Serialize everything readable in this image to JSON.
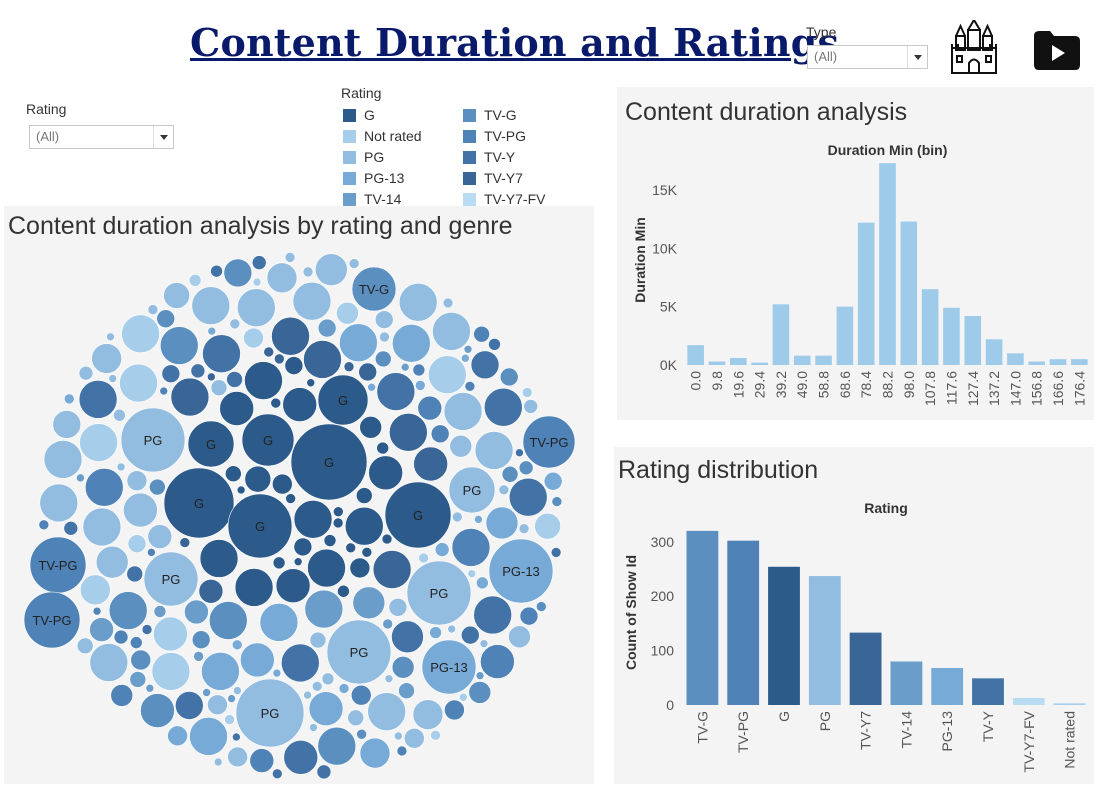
{
  "header": {
    "title": "Content Duration and Ratings",
    "type_filter": {
      "label": "Type",
      "value": "(All)"
    }
  },
  "icons": {
    "castle": "castle-icon",
    "play": "play-icon"
  },
  "rating_filter": {
    "label": "Rating",
    "value": "(All)"
  },
  "legend": {
    "title": "Rating",
    "items": [
      {
        "label": "G",
        "color": "#2c5a8a"
      },
      {
        "label": "Not rated",
        "color": "#a6cde9"
      },
      {
        "label": "PG",
        "color": "#92bde0"
      },
      {
        "label": "PG-13",
        "color": "#77aad6"
      },
      {
        "label": "TV-14",
        "color": "#6a9dca"
      },
      {
        "label": "TV-G",
        "color": "#5a8fbf"
      },
      {
        "label": "TV-PG",
        "color": "#4f82b6"
      },
      {
        "label": "TV-Y",
        "color": "#4373a6"
      },
      {
        "label": "TV-Y7",
        "color": "#3a6597"
      },
      {
        "label": "TV-Y7-FV",
        "color": "#b8ddf2"
      }
    ]
  },
  "colors": {
    "G": "#2c5a8a",
    "Not rated": "#a6cde9",
    "PG": "#92bde0",
    "PG-13": "#77aad6",
    "TV-14": "#6a9dca",
    "TV-G": "#5a8fbf",
    "TV-PG": "#4f82b6",
    "TV-Y": "#4373a6",
    "TV-Y7": "#3a6597",
    "TV-Y7-FV": "#b8ddf2",
    "bar_blue": "#9fcbea"
  },
  "bubble_panel": {
    "title": "Content duration analysis by rating and genre"
  },
  "chart_data": [
    {
      "type": "bubble",
      "title": "Content duration analysis by rating and genre",
      "labeled_bubbles": [
        {
          "rating": "G",
          "label": "G"
        },
        {
          "rating": "G",
          "label": "G"
        },
        {
          "rating": "G",
          "label": "G"
        },
        {
          "rating": "G",
          "label": "G"
        },
        {
          "rating": "G",
          "label": "G"
        },
        {
          "rating": "G",
          "label": "G"
        },
        {
          "rating": "G",
          "label": "G"
        },
        {
          "rating": "PG",
          "label": "PG"
        },
        {
          "rating": "PG",
          "label": "PG"
        },
        {
          "rating": "PG",
          "label": "PG"
        },
        {
          "rating": "PG",
          "label": "PG"
        },
        {
          "rating": "PG",
          "label": "PG"
        },
        {
          "rating": "PG",
          "label": "PG"
        },
        {
          "rating": "PG-13",
          "label": "PG-13"
        },
        {
          "rating": "PG-13",
          "label": "PG-13"
        },
        {
          "rating": "TV-G",
          "label": "TV-G"
        },
        {
          "rating": "TV-PG",
          "label": "TV-PG"
        },
        {
          "rating": "TV-PG",
          "label": "TV-PG"
        },
        {
          "rating": "TV-PG",
          "label": "TV-PG"
        }
      ]
    },
    {
      "type": "bar",
      "title": "Content duration analysis",
      "xlabel": "Duration Min (bin)",
      "ylabel": "Duration Min",
      "categories": [
        "0.0",
        "9.8",
        "19.6",
        "29.4",
        "39.2",
        "49.0",
        "58.8",
        "68.6",
        "78.4",
        "88.2",
        "98.0",
        "107.8",
        "117.6",
        "127.4",
        "137.2",
        "147.0",
        "156.8",
        "166.6",
        "176.4"
      ],
      "values": [
        1700,
        300,
        600,
        200,
        5200,
        800,
        800,
        5000,
        12200,
        17300,
        12300,
        6500,
        4900,
        4200,
        2200,
        1000,
        300,
        500,
        500
      ],
      "yticks": [
        0,
        5000,
        10000,
        15000
      ],
      "ytick_labels": [
        "0K",
        "5K",
        "10K",
        "15K"
      ],
      "ylim": [
        0,
        18000
      ]
    },
    {
      "type": "bar",
      "title": "Rating distribution",
      "xlabel": "Rating",
      "ylabel": "Count of Show Id",
      "categories": [
        "TV-G",
        "TV-PG",
        "G",
        "PG",
        "TV-Y7",
        "TV-14",
        "PG-13",
        "TV-Y",
        "TV-Y7-FV",
        "Not rated"
      ],
      "values": [
        320,
        302,
        254,
        237,
        133,
        80,
        68,
        49,
        13,
        3
      ],
      "yticks": [
        0,
        100,
        200,
        300
      ],
      "ylim": [
        0,
        340
      ]
    }
  ]
}
